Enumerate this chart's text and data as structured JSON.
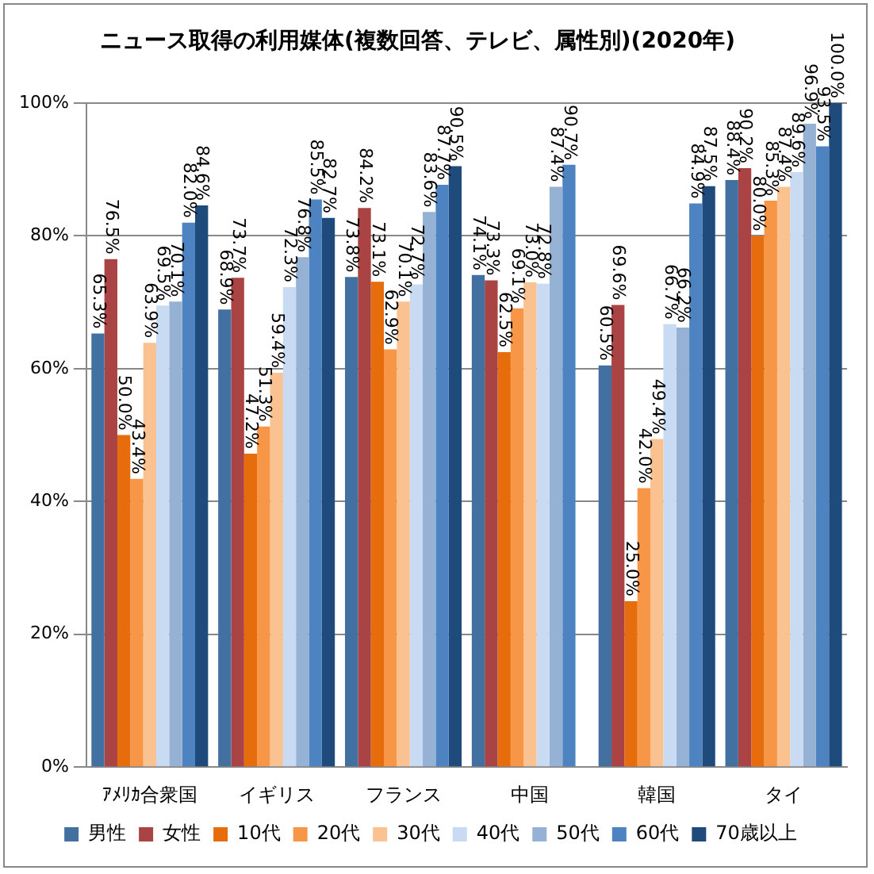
{
  "chart_data": {
    "type": "bar",
    "title": "ニュース取得の利用媒体(複数回答、テレビ、属性別)(2020年)",
    "categories": [
      "ｱﾒﾘｶ合衆国",
      "イギリス",
      "フランス",
      "中国",
      "韓国",
      "タイ"
    ],
    "series": [
      {
        "name": "男性",
        "color": "#4270a0",
        "values": [
          65.3,
          68.9,
          73.8,
          74.1,
          60.5,
          88.4
        ],
        "value_labels": [
          "65.3%",
          "68.9%",
          "73.8%",
          "74.1%",
          "60.5%",
          "88.4%"
        ]
      },
      {
        "name": "女性",
        "color": "#aa4344",
        "values": [
          76.5,
          73.7,
          84.2,
          73.3,
          69.6,
          90.2
        ],
        "value_labels": [
          "76.5%",
          "73.7%",
          "84.2%",
          "73.3%",
          "69.6%",
          "90.2%"
        ]
      },
      {
        "name": "10代",
        "color": "#e66c0c",
        "values": [
          50.0,
          47.2,
          73.1,
          62.5,
          25.0,
          80.0
        ],
        "value_labels": [
          "50.0%",
          "47.2%",
          "73.1%",
          "62.5%",
          "25.0%",
          "80.0%"
        ]
      },
      {
        "name": "20代",
        "color": "#f79646",
        "values": [
          43.4,
          51.3,
          62.9,
          69.1,
          42.0,
          85.3
        ],
        "value_labels": [
          "43.4%",
          "51.3%",
          "62.9%",
          "69.1%",
          "42.0%",
          "85.3%"
        ]
      },
      {
        "name": "30代",
        "color": "#fac191",
        "values": [
          63.9,
          59.4,
          70.1,
          73.0,
          49.4,
          87.4
        ],
        "value_labels": [
          "63.9%",
          "59.4%",
          "70.1%",
          "73.0%",
          "49.4%",
          "87.4%"
        ]
      },
      {
        "name": "40代",
        "color": "#c9dbf2",
        "values": [
          69.5,
          72.3,
          72.7,
          72.8,
          66.7,
          89.6
        ],
        "value_labels": [
          "69.5%",
          "72.3%",
          "72.7%",
          "72.8%",
          "66.7%",
          "89.6%"
        ]
      },
      {
        "name": "50代",
        "color": "#95b1d4",
        "values": [
          70.1,
          76.8,
          83.6,
          87.4,
          66.2,
          96.9
        ],
        "value_labels": [
          "70.1%",
          "76.8%",
          "83.6%",
          "87.4%",
          "66.2%",
          "96.9%"
        ]
      },
      {
        "name": "60代",
        "color": "#4c83c0",
        "values": [
          82.0,
          85.5,
          87.7,
          90.7,
          84.9,
          93.5
        ],
        "value_labels": [
          "82.0%",
          "85.5%",
          "87.7%",
          "90.7%",
          "84.9%",
          "93.5%"
        ]
      },
      {
        "name": "70歳以上",
        "color": "#1e4a7c",
        "values": [
          84.6,
          82.7,
          90.5,
          null,
          87.5,
          100.0
        ],
        "value_labels": [
          "84.6%",
          "82.7%",
          "90.5%",
          null,
          "87.5%",
          "100.0%"
        ]
      }
    ],
    "ylim": [
      0,
      100
    ],
    "yticks": [
      {
        "value": 0,
        "label": "0%"
      },
      {
        "value": 20,
        "label": "20%"
      },
      {
        "value": 40,
        "label": "40%"
      },
      {
        "value": 60,
        "label": "60%"
      },
      {
        "value": 80,
        "label": "80%"
      },
      {
        "value": 100,
        "label": "100%"
      }
    ],
    "grid": "y",
    "legend": "bottom"
  }
}
